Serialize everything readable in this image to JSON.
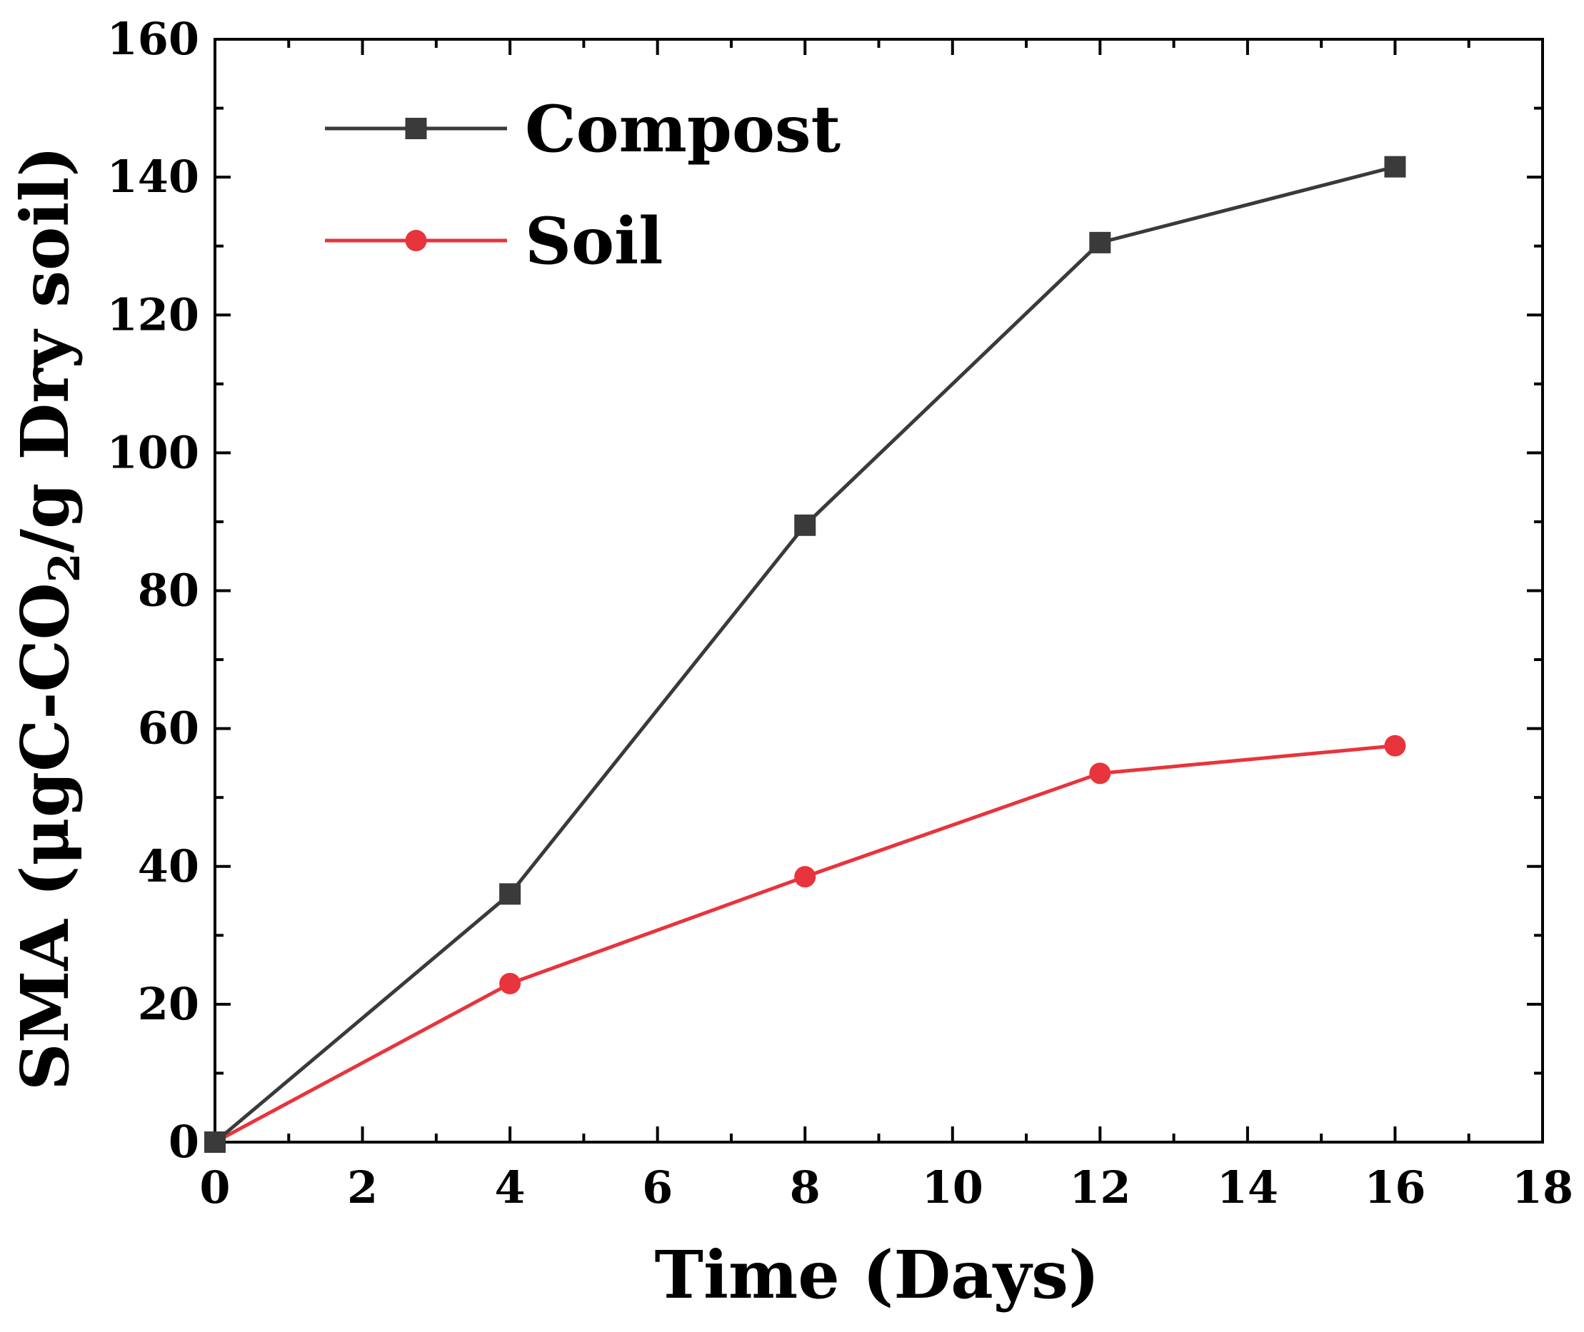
{
  "chart_data": {
    "type": "line",
    "title": "",
    "xlabel": "Time (Days)",
    "ylabel_main": "SMA (μgC-CO",
    "ylabel_sub": "2",
    "ylabel_end": "/g Dry soil)",
    "xlim": [
      0,
      18
    ],
    "ylim": [
      0,
      160
    ],
    "xticks": [
      0,
      2,
      4,
      6,
      8,
      10,
      12,
      14,
      16,
      18
    ],
    "yticks": [
      0,
      20,
      40,
      60,
      80,
      100,
      120,
      140,
      160
    ],
    "grid": false,
    "legend_position": "top-left",
    "series": [
      {
        "name": "Compost",
        "color": "#3a3a3a",
        "marker": "square",
        "x": [
          0,
          4,
          8,
          12,
          16
        ],
        "y": [
          0,
          36,
          89.5,
          130.5,
          141.5
        ]
      },
      {
        "name": "Soil",
        "color": "#e8343c",
        "marker": "circle",
        "x": [
          0,
          4,
          8,
          12,
          16
        ],
        "y": [
          0,
          23,
          38.5,
          53.5,
          57.5
        ]
      }
    ]
  }
}
